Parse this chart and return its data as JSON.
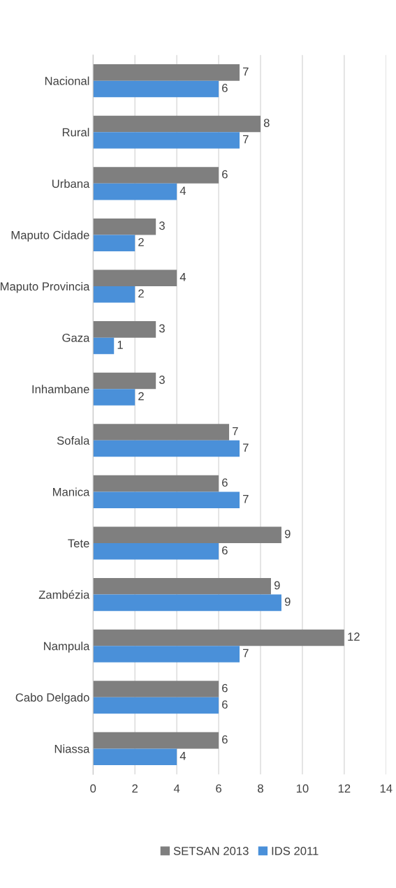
{
  "chart_data": {
    "type": "bar",
    "orientation": "horizontal",
    "categories": [
      "Nacional",
      "Rural",
      "Urbana",
      "Maputo Cidade",
      "Maputo Provincia",
      "Gaza",
      "Inhambane",
      "Sofala",
      "Manica",
      "Tete",
      "Zambézia",
      "Nampula",
      "Cabo Delgado",
      "Niassa"
    ],
    "series": [
      {
        "name": "SETSAN 2013",
        "color": "#7f7f7f",
        "values": [
          7,
          8,
          6,
          3,
          4,
          3,
          3,
          6.5,
          6,
          9,
          8.5,
          12,
          6,
          6
        ],
        "value_labels": [
          "7",
          "8",
          "6",
          "3",
          "4",
          "3",
          "3",
          "7",
          "6",
          "9",
          "9",
          "12",
          "6",
          "6"
        ]
      },
      {
        "name": "IDS 2011",
        "color": "#4a90d9",
        "values": [
          6,
          7,
          4,
          2,
          2,
          1,
          2,
          7,
          7,
          6,
          9,
          7,
          6,
          4
        ],
        "value_labels": [
          "6",
          "7",
          "4",
          "2",
          "2",
          "1",
          "2",
          "7",
          "7",
          "6",
          "9",
          "7",
          "6",
          "4"
        ]
      }
    ],
    "xlim": [
      0,
      14
    ],
    "xticks": [
      0,
      2,
      4,
      6,
      8,
      10,
      12,
      14
    ],
    "grid": "x",
    "legend": "bottom"
  }
}
